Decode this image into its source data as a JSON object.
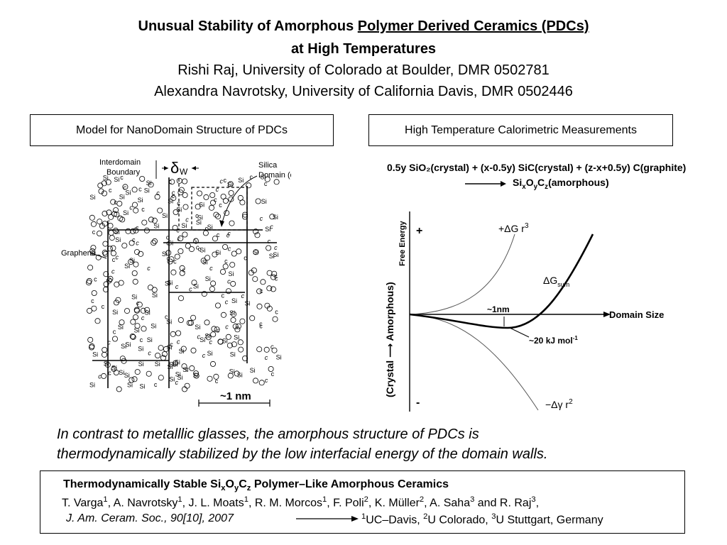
{
  "title": {
    "line1_plain": "Unusual Stability of Amorphous ",
    "line1_underlined": "Polymer Derived Ceramics (PDCs)",
    "line2": "at High Temperatures"
  },
  "authors": {
    "line1": "Rishi Raj, University of Colorado at Boulder, DMR 0502781",
    "line2": "Alexandra Navrotsky, University of California Davis, DMR 0502446"
  },
  "left_panel": {
    "heading": "Model for NanoDomain Structure of PDCs",
    "labels": {
      "interdomain1": "Interdomain",
      "interdomain2": "Boundary",
      "delta": "δ",
      "delta_sub": "W",
      "silica1": "Silica",
      "silica2": "Domain (d')",
      "graphene": "Graphene",
      "scale": "~1 nm"
    },
    "atom_labels": {
      "si": "Si",
      "c": "c"
    }
  },
  "right_panel": {
    "heading": "High Temperature Calorimetric Measurements",
    "reaction_line1": "0.5y SiO₂(crystal) + (x-0.5y) SiC(crystal) + (z-x+0.5y) C(graphite)",
    "reaction_product": "SiₓO_yC_z(amorphous)",
    "product_parts": {
      "a": "Si",
      "b": "x",
      "c": "O",
      "d": "y",
      "e": "C",
      "f": "z",
      "g": "(amorphous)"
    },
    "y_axis_outer": "(Crystal ⟶ Amorphous)",
    "y_axis_inner": "Free Energy",
    "plus": "+",
    "minus": "-",
    "x_axis": "Domain Size",
    "curve_plus": "+ΔG r",
    "curve_plus_sup": "3",
    "curve_sum": "ΔG",
    "curve_sum_sub": "sum",
    "curve_minus": "−Δγ r",
    "curve_minus_sup": "2",
    "min_size": "~1nm",
    "min_energy": "~20 kJ mol",
    "min_energy_sup": "-1"
  },
  "caption": {
    "line1": "In contrast to metalllic glasses, the amorphous structure of PDCs is",
    "line2": "thermodynamically stabilized by the low interfacial energy of the domain walls."
  },
  "reference": {
    "title_a": "Thermodynamically Stable Si",
    "title_x": "x",
    "title_o": "O",
    "title_y": "y",
    "title_c": "C",
    "title_z": "z",
    "title_b": " Polymer–Like Amorphous Ceramics",
    "authors": [
      {
        "name": "T. Varga",
        "aff": "1"
      },
      {
        "name": ", A. Navrotsky",
        "aff": "1"
      },
      {
        "name": ", J. L. Moats",
        "aff": "1"
      },
      {
        "name": ", R. M. Morcos",
        "aff": "1"
      },
      {
        "name": ", F. Poli",
        "aff": "2"
      },
      {
        "name": ", K. Müller",
        "aff": "2"
      },
      {
        "name": ", A. Saha",
        "aff": "3"
      },
      {
        "name": " and R. Raj",
        "aff": "3"
      }
    ],
    "authors_end": ",",
    "journal": "J. Am. Ceram. Soc., 90[10], 2007",
    "affiliations": [
      {
        "num": "1",
        "name": "UC–Davis, "
      },
      {
        "num": "2",
        "name": "U Colorado, "
      },
      {
        "num": "3",
        "name": "U Stuttgart, Germany"
      }
    ]
  }
}
